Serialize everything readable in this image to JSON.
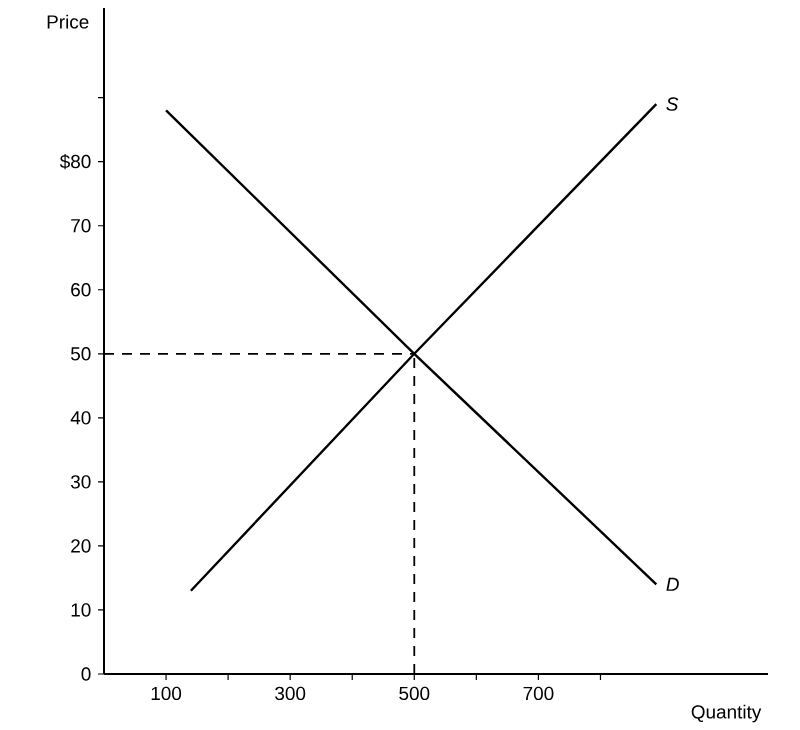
{
  "chart_data": {
    "type": "line",
    "xlabel": "Quantity",
    "ylabel": "Price",
    "xlim": [
      0,
      1070
    ],
    "ylim": [
      0,
      104
    ],
    "xticks": [
      100,
      {
        "value": 200,
        "label": null
      },
      300,
      {
        "value": 400,
        "label": null
      },
      500,
      {
        "value": 600,
        "label": null
      },
      700,
      {
        "value": 800,
        "label": null
      }
    ],
    "yticks": [
      0,
      10,
      20,
      30,
      40,
      50,
      60,
      70,
      {
        "value": 80,
        "label": "$80"
      },
      {
        "value": 90,
        "label": null
      }
    ],
    "series": [
      {
        "name": "S",
        "color": "#000000",
        "x": [
          140,
          500,
          890
        ],
        "values": [
          13,
          50,
          89
        ]
      },
      {
        "name": "D",
        "color": "#000000",
        "x": [
          100,
          500,
          890
        ],
        "values": [
          88,
          50,
          14
        ]
      }
    ],
    "ref_lines": [
      {
        "axis": "x",
        "value": 500,
        "line_style": "dashed"
      },
      {
        "axis": "y",
        "value": 50,
        "line_style": "dashed"
      }
    ],
    "legend": false,
    "grid": false,
    "marker": "none",
    "line_style": "solid"
  }
}
